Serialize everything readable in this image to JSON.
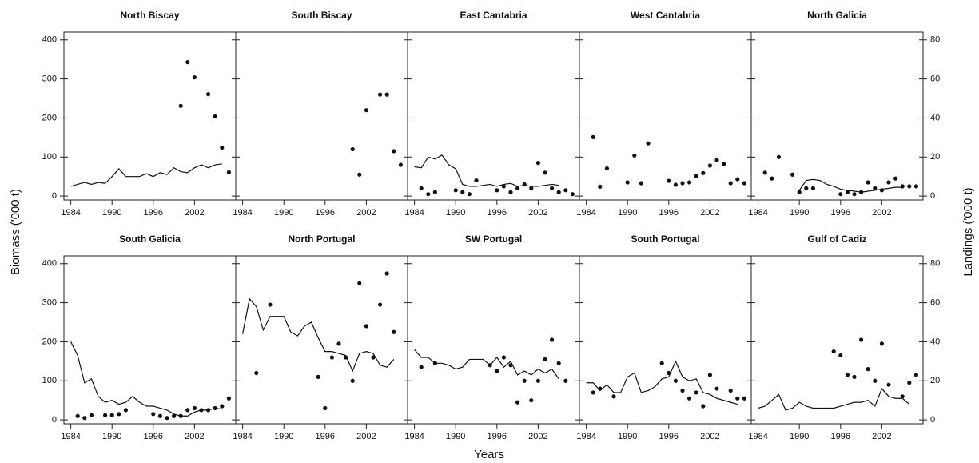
{
  "chart_data": {
    "type": "combo",
    "xlabel": "Years",
    "ylabel": "Biomass ('000 t)",
    "y2label": "Landings ('000 t)",
    "xlim": [
      1983,
      2008
    ],
    "xticks": [
      1984,
      1990,
      1996,
      2002
    ],
    "ylim": [
      -10,
      420
    ],
    "yticks": [
      0,
      100,
      200,
      300,
      400
    ],
    "y2lim": [
      -2,
      84
    ],
    "y2ticks": [
      0,
      20,
      40,
      60,
      80
    ],
    "panels": [
      {
        "title": "North Biscay",
        "series": [
          {
            "type": "scatter",
            "axis": "y",
            "color": "#111111",
            "x": [
              2000,
              2001,
              2002,
              2004,
              2005,
              2006,
              2007
            ],
            "values": [
              231,
              343,
              304,
              261,
              204,
              124,
              61
            ]
          },
          {
            "type": "line",
            "axis": "y2",
            "color": "#111111",
            "x": [
              1984,
              1985,
              1986,
              1987,
              1988,
              1989,
              1990,
              1991,
              1992,
              1993,
              1994,
              1995,
              1996,
              1997,
              1998,
              1999,
              2000,
              2001,
              2002,
              2003,
              2004,
              2005,
              2006
            ],
            "values": [
              5,
              6,
              7,
              6,
              7,
              6.5,
              10,
              14,
              10,
              10,
              10,
              11.5,
              10,
              12,
              11,
              14.5,
              12.5,
              12,
              14.5,
              16,
              14.5,
              16,
              16.5
            ]
          }
        ]
      },
      {
        "title": "South Biscay",
        "series": [
          {
            "type": "scatter",
            "axis": "y",
            "color": "#111111",
            "x": [
              2000,
              2001,
              2002,
              2004,
              2005,
              2006,
              2007
            ],
            "values": [
              120,
              55,
              220,
              260,
              260,
              115,
              80
            ]
          }
        ]
      },
      {
        "title": "East Cantabria",
        "series": [
          {
            "type": "scatter",
            "axis": "y",
            "color": "#111111",
            "x": [
              1985,
              1986,
              1987,
              1990,
              1991,
              1992,
              1993,
              1996,
              1997,
              1998,
              1999,
              2000,
              2001,
              2002,
              2003,
              2004,
              2005,
              2006,
              2007
            ],
            "values": [
              20,
              5,
              10,
              15,
              10,
              5,
              40,
              15,
              25,
              10,
              20,
              30,
              20,
              85,
              60,
              20,
              10,
              15,
              5
            ]
          },
          {
            "type": "line",
            "axis": "y2",
            "color": "#111111",
            "x": [
              1984,
              1985,
              1986,
              1987,
              1988,
              1989,
              1990,
              1991,
              1992,
              1993,
              1994,
              1995,
              1996,
              1997,
              1998,
              1999,
              2000,
              2001,
              2002,
              2003,
              2004,
              2005
            ],
            "values": [
              15,
              14.5,
              20,
              19,
              21,
              16,
              14,
              6,
              5,
              5,
              5.5,
              6,
              5,
              6,
              6.5,
              5,
              5.5,
              5,
              5,
              5.5,
              6,
              5.5
            ]
          }
        ]
      },
      {
        "title": "West Cantabria",
        "series": [
          {
            "type": "scatter",
            "axis": "y",
            "color": "#111111",
            "x": [
              1985,
              1986,
              1987,
              1990,
              1991,
              1992,
              1993,
              1996,
              1997,
              1998,
              1999,
              2000,
              2001,
              2002,
              2003,
              2004,
              2005,
              2006,
              2007
            ],
            "values": [
              151,
              24,
              71,
              35,
              104,
              33,
              135,
              39,
              29,
              33,
              35,
              51,
              59,
              78,
              92,
              82,
              33,
              43,
              33
            ]
          }
        ]
      },
      {
        "title": "North Galicia",
        "series": [
          {
            "type": "scatter",
            "axis": "y",
            "color": "#111111",
            "x": [
              1985,
              1986,
              1987,
              1989,
              1990,
              1991,
              1992,
              1996,
              1997,
              1998,
              1999,
              2000,
              2001,
              2002,
              2003,
              2004,
              2005,
              2006,
              2007
            ],
            "values": [
              60,
              45,
              100,
              55,
              10,
              20,
              20,
              5,
              10,
              5,
              10,
              35,
              20,
              15,
              35,
              45,
              25,
              25,
              25
            ]
          },
          {
            "type": "line",
            "axis": "y2",
            "color": "#111111",
            "x": [
              1990,
              1991,
              1992,
              1993,
              1994,
              1995,
              1996,
              1997,
              1998,
              1999,
              2000,
              2001,
              2002,
              2003,
              2004,
              2005
            ],
            "values": [
              3,
              8,
              8.5,
              8,
              6,
              5,
              3.5,
              3,
              2.5,
              2,
              2.5,
              3,
              3.5,
              4,
              4.5,
              4.5
            ]
          }
        ]
      },
      {
        "title": "South Galicia",
        "series": [
          {
            "type": "scatter",
            "axis": "y",
            "color": "#111111",
            "x": [
              1985,
              1986,
              1987,
              1989,
              1990,
              1991,
              1992,
              1996,
              1997,
              1998,
              1999,
              2000,
              2001,
              2002,
              2003,
              2004,
              2005,
              2006,
              2007
            ],
            "values": [
              10,
              5,
              12,
              12,
              12,
              15,
              25,
              15,
              10,
              5,
              10,
              10,
              25,
              30,
              25,
              25,
              30,
              35,
              55
            ]
          },
          {
            "type": "line",
            "axis": "y2",
            "color": "#111111",
            "x": [
              1984,
              1985,
              1986,
              1987,
              1988,
              1989,
              1990,
              1991,
              1992,
              1993,
              1994,
              1995,
              1996,
              1997,
              1998,
              1999,
              2000,
              2001,
              2002,
              2003,
              2004,
              2005,
              2006
            ],
            "values": [
              40,
              33,
              19,
              21,
              12,
              9,
              10,
              8,
              9,
              12,
              9,
              7,
              7,
              6,
              5,
              3,
              2,
              2,
              4,
              5,
              5,
              6,
              5.5
            ]
          }
        ]
      },
      {
        "title": "North Portugal",
        "series": [
          {
            "type": "scatter",
            "axis": "y",
            "color": "#111111",
            "x": [
              1986,
              1988,
              1995,
              1996,
              1997,
              1998,
              1999,
              2000,
              2001,
              2002,
              2003,
              2004,
              2005,
              2006
            ],
            "values": [
              120,
              295,
              110,
              30,
              160,
              195,
              160,
              100,
              350,
              240,
              160,
              295,
              375,
              225
            ]
          },
          {
            "type": "line",
            "axis": "y2",
            "color": "#111111",
            "x": [
              1984,
              1985,
              1986,
              1987,
              1988,
              1989,
              1990,
              1991,
              1992,
              1993,
              1994,
              1995,
              1996,
              1997,
              1998,
              1999,
              2000,
              2001,
              2002,
              2003,
              2004,
              2005,
              2006
            ],
            "values": [
              44,
              62,
              58,
              46,
              53,
              53,
              53,
              45,
              43,
              48,
              50,
              42,
              35,
              35,
              34,
              33,
              25,
              34,
              35,
              34,
              28,
              27,
              31
            ]
          }
        ]
      },
      {
        "title": "SW Portugal",
        "series": [
          {
            "type": "scatter",
            "axis": "y",
            "color": "#111111",
            "x": [
              1985,
              1987,
              1995,
              1996,
              1997,
              1998,
              1999,
              2000,
              2001,
              2002,
              2003,
              2004,
              2005,
              2006
            ],
            "values": [
              135,
              145,
              140,
              125,
              160,
              140,
              45,
              100,
              50,
              100,
              155,
              205,
              145,
              100
            ]
          },
          {
            "type": "line",
            "axis": "y2",
            "color": "#111111",
            "x": [
              1984,
              1985,
              1986,
              1987,
              1988,
              1989,
              1990,
              1991,
              1992,
              1993,
              1994,
              1995,
              1996,
              1997,
              1998,
              1999,
              2000,
              2001,
              2002,
              2003,
              2004,
              2005
            ],
            "values": [
              36,
              32,
              32,
              29,
              29,
              28,
              26,
              27,
              31,
              31,
              31,
              28,
              32,
              27,
              30,
              23,
              25,
              23,
              26,
              24,
              26,
              21
            ]
          }
        ]
      },
      {
        "title": "South Portugal",
        "series": [
          {
            "type": "scatter",
            "axis": "y",
            "color": "#111111",
            "x": [
              1985,
              1986,
              1988,
              1995,
              1996,
              1997,
              1998,
              1999,
              2000,
              2001,
              2002,
              2003,
              2005,
              2006,
              2007
            ],
            "values": [
              70,
              80,
              60,
              145,
              120,
              100,
              75,
              55,
              70,
              35,
              115,
              80,
              75,
              55,
              55
            ]
          },
          {
            "type": "line",
            "axis": "y2",
            "color": "#111111",
            "x": [
              1984,
              1985,
              1986,
              1987,
              1988,
              1989,
              1990,
              1991,
              1992,
              1993,
              1994,
              1995,
              1996,
              1997,
              1998,
              1999,
              2000,
              2001,
              2002,
              2003,
              2004,
              2005,
              2006
            ],
            "values": [
              19,
              19,
              15,
              18,
              14,
              14,
              22,
              24,
              14,
              15,
              17,
              21,
              22,
              30,
              22,
              20,
              21,
              14,
              13,
              11,
              10,
              9,
              8
            ]
          }
        ]
      },
      {
        "title": "Gulf of Cadiz",
        "series": [
          {
            "type": "scatter",
            "axis": "y",
            "color": "#111111",
            "x": [
              1995,
              1996,
              1997,
              1998,
              1999,
              2000,
              2001,
              2002,
              2003,
              2005,
              2006,
              2007
            ],
            "values": [
              175,
              165,
              115,
              110,
              205,
              130,
              100,
              195,
              90,
              60,
              95,
              115
            ]
          },
          {
            "type": "line",
            "axis": "y2",
            "color": "#111111",
            "x": [
              1984,
              1985,
              1986,
              1987,
              1988,
              1989,
              1990,
              1991,
              1992,
              1993,
              1994,
              1995,
              1996,
              1997,
              1998,
              1999,
              2000,
              2001,
              2002,
              2003,
              2004,
              2005,
              2006
            ],
            "values": [
              6,
              7,
              10,
              13,
              5,
              6,
              9,
              7,
              6,
              6,
              6,
              6,
              7,
              8,
              9,
              9,
              10,
              7,
              16,
              12,
              11,
              11,
              8
            ]
          }
        ]
      }
    ]
  }
}
